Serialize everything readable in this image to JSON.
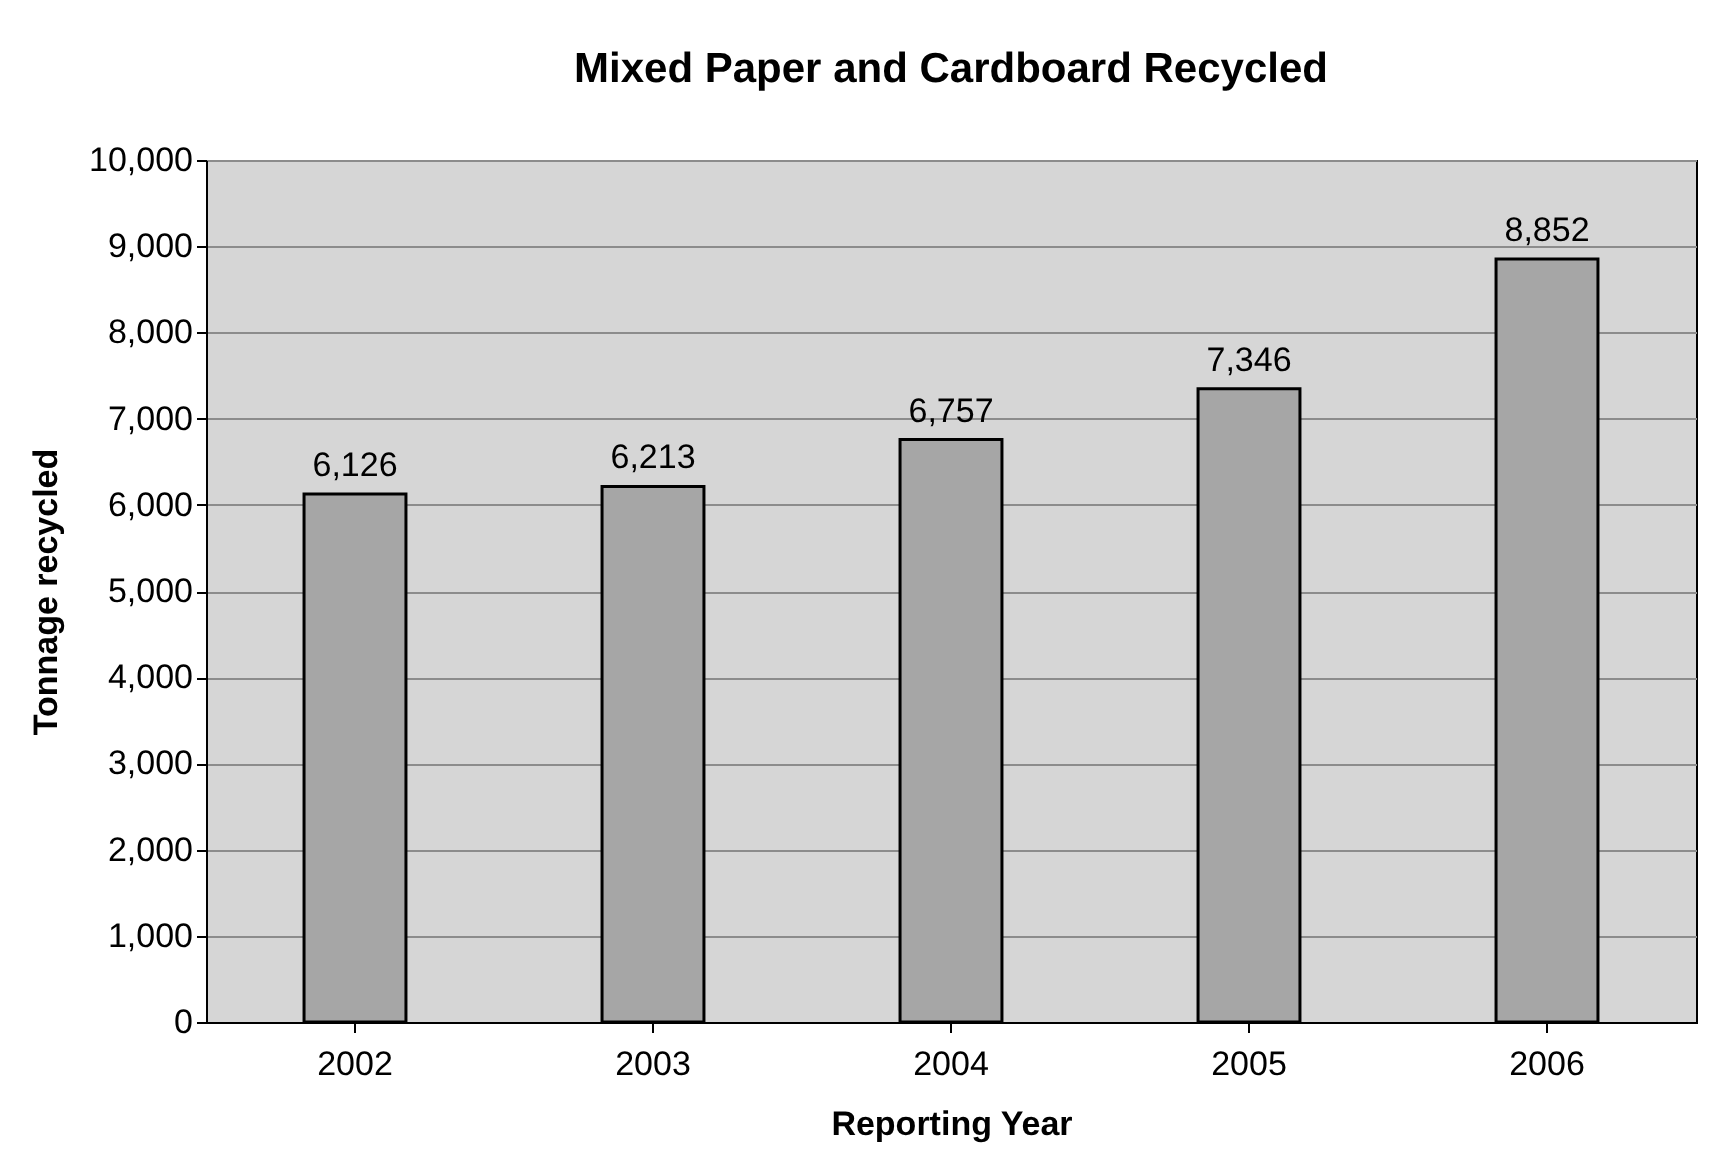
{
  "chart_data": {
    "type": "bar",
    "title": "Mixed Paper and Cardboard Recycled",
    "xlabel": "Reporting Year",
    "ylabel": "Tonnage recycled",
    "categories": [
      "2002",
      "2003",
      "2004",
      "2005",
      "2006"
    ],
    "values": [
      6126,
      6213,
      6757,
      7346,
      8852
    ],
    "value_labels": [
      "6,126",
      "6,213",
      "6,757",
      "7,346",
      "8,852"
    ],
    "color": "#a6a6a6",
    "ylim": [
      0,
      10000
    ],
    "yticks": [
      {
        "value": 0,
        "label": "0"
      },
      {
        "value": 1000,
        "label": "1,000"
      },
      {
        "value": 2000,
        "label": "2,000"
      },
      {
        "value": 3000,
        "label": "3,000"
      },
      {
        "value": 4000,
        "label": "4,000"
      },
      {
        "value": 5000,
        "label": "5,000"
      },
      {
        "value": 6000,
        "label": "6,000"
      },
      {
        "value": 7000,
        "label": "7,000"
      },
      {
        "value": 8000,
        "label": "8,000"
      },
      {
        "value": 9000,
        "label": "9,000"
      },
      {
        "value": 10000,
        "label": "10,000"
      }
    ],
    "grid": "y"
  }
}
